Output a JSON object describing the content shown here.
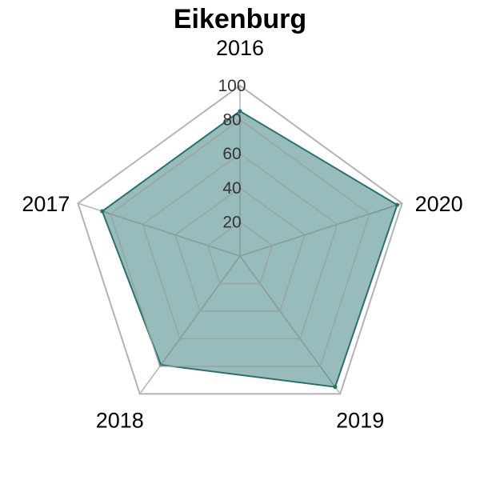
{
  "chart_data": {
    "type": "radar",
    "title": "Eikenburg",
    "categories": [
      "2016",
      "2020",
      "2019",
      "2018",
      "2017"
    ],
    "series": [
      {
        "values": [
          85,
          97,
          95,
          79,
          85
        ]
      }
    ],
    "rlim": [
      0,
      100
    ],
    "rticks": [
      20,
      40,
      60,
      80,
      100
    ],
    "grid": true,
    "legend": "none",
    "colors": {
      "fill": "#2f7a78",
      "line": "#2b6f6d",
      "grid": "#9aa0a0",
      "outer": "#b3b3b3"
    }
  }
}
